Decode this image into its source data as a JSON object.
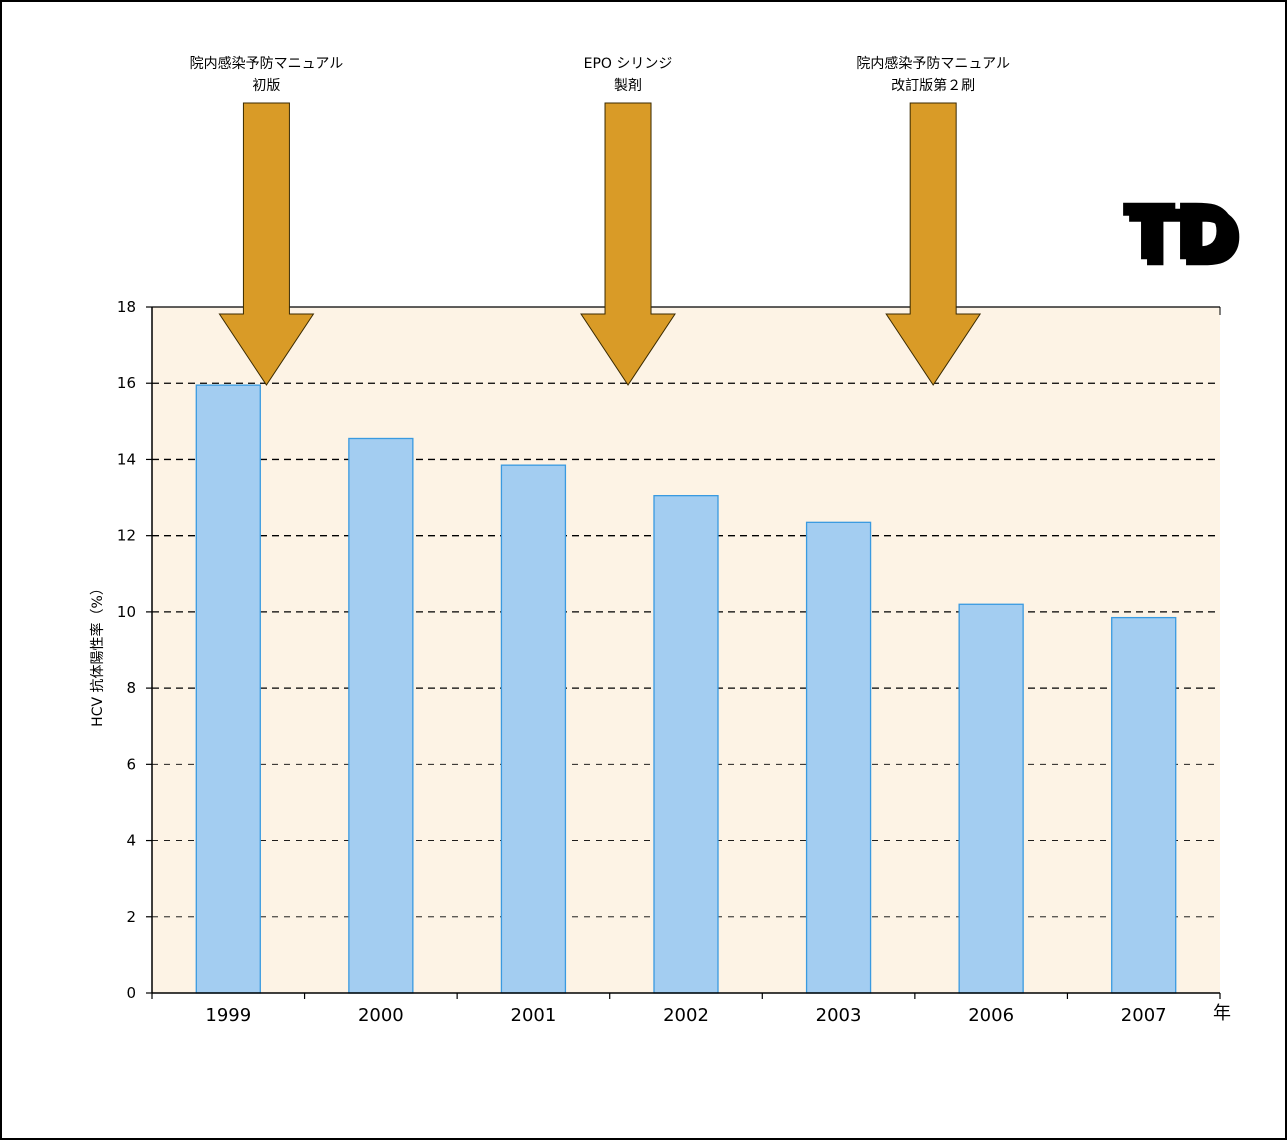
{
  "chart_data": {
    "type": "bar",
    "categories": [
      "1999",
      "2000",
      "2001",
      "2002",
      "2003",
      "2006",
      "2007"
    ],
    "values": [
      15.95,
      14.55,
      13.85,
      13.05,
      12.35,
      10.2,
      9.85
    ],
    "ylabel": "HCV 抗体陽性率（%）",
    "xunit": "年",
    "ylim": [
      0,
      18
    ],
    "yticks": [
      0,
      2,
      4,
      6,
      8,
      10,
      12,
      14,
      16,
      18
    ],
    "grid": "horizontal dashed",
    "colors": {
      "bar_fill": "#a3cdf1",
      "bar_stroke": "#3a9ae0",
      "plot_bg": "#fdf3e5",
      "arrow": "#d99b27"
    },
    "annotations": [
      {
        "lines": [
          "院内感染予防マニュアル",
          "初版"
        ],
        "x": 0.25
      },
      {
        "lines": [
          "EPO シリンジ",
          "製剤"
        ],
        "x": 2.62
      },
      {
        "lines": [
          "院内感染予防マニュアル",
          "改訂版第２刷"
        ],
        "x": 4.62
      }
    ]
  },
  "logo": {
    "icon": "td-3d-logo-icon",
    "text": "TD"
  }
}
